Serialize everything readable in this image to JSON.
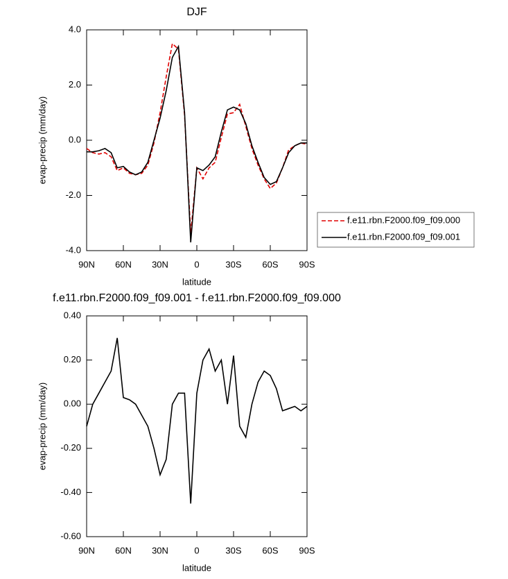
{
  "chart_data": [
    {
      "type": "line",
      "title": "DJF",
      "x_label": "latitude",
      "y_label": "evap-precip (mm/day)",
      "x": [
        90,
        85,
        80,
        75,
        70,
        65,
        60,
        55,
        50,
        45,
        40,
        35,
        30,
        25,
        20,
        15,
        10,
        5,
        0,
        -5,
        -10,
        -15,
        -20,
        -25,
        -30,
        -35,
        -40,
        -45,
        -50,
        -55,
        -60,
        -65,
        -70,
        -75,
        -80,
        -85,
        -90
      ],
      "series": [
        {
          "name": "f.e11.rbn.F2000.f09_f09.000",
          "color": "#e00000",
          "line_style": "dashed",
          "values": [
            -0.3,
            -0.45,
            -0.5,
            -0.45,
            -0.6,
            -1.1,
            -1.0,
            -1.2,
            -1.25,
            -1.2,
            -0.9,
            -0.1,
            1.0,
            2.3,
            3.5,
            3.3,
            0.9,
            -3.4,
            -1.0,
            -1.4,
            -1.0,
            -0.8,
            0.1,
            0.95,
            1.0,
            1.3,
            0.5,
            -0.3,
            -0.9,
            -1.4,
            -1.75,
            -1.55,
            -1.0,
            -0.35,
            -0.2,
            -0.1,
            -0.15
          ]
        },
        {
          "name": "f.e11.rbn.F2000.f09_f09.001",
          "color": "#000000",
          "line_style": "solid",
          "values": [
            -0.42,
            -0.42,
            -0.38,
            -0.3,
            -0.45,
            -1.0,
            -0.95,
            -1.15,
            -1.25,
            -1.15,
            -0.8,
            0.0,
            0.8,
            1.8,
            3.0,
            3.4,
            1.0,
            -3.7,
            -1.0,
            -1.1,
            -0.9,
            -0.6,
            0.3,
            1.1,
            1.2,
            1.1,
            0.6,
            -0.2,
            -0.8,
            -1.35,
            -1.6,
            -1.5,
            -1.0,
            -0.45,
            -0.2,
            -0.1,
            -0.1
          ]
        }
      ],
      "xlim": [
        90,
        -90
      ],
      "xticks": [
        {
          "value": 90,
          "label": "90N"
        },
        {
          "value": 60,
          "label": "60N"
        },
        {
          "value": 30,
          "label": "30N"
        },
        0,
        {
          "value": -30,
          "label": "30S"
        },
        {
          "value": -60,
          "label": "60S"
        },
        {
          "value": -90,
          "label": "90S"
        }
      ],
      "ylim": [
        -4,
        4
      ],
      "yticks": [
        {
          "value": -4,
          "label": "-4.0"
        },
        {
          "value": -2,
          "label": "-2.0"
        },
        {
          "value": 0,
          "label": "0.0"
        },
        {
          "value": 2,
          "label": "2.0"
        },
        {
          "value": 4,
          "label": "4.0"
        }
      ],
      "legend": "right"
    },
    {
      "type": "line",
      "title": "f.e11.rbn.F2000.f09_f09.001 - f.e11.rbn.F2000.f09_f09.000",
      "x_label": "latitude",
      "y_label": "evap-precip (mm/day)",
      "x": [
        90,
        85,
        80,
        75,
        70,
        65,
        60,
        55,
        50,
        45,
        40,
        35,
        30,
        25,
        20,
        15,
        10,
        5,
        0,
        -5,
        -10,
        -15,
        -20,
        -25,
        -30,
        -35,
        -40,
        -45,
        -50,
        -55,
        -60,
        -65,
        -70,
        -75,
        -80,
        -85,
        -90
      ],
      "series": [
        {
          "color": "#000000",
          "line_style": "solid",
          "values": [
            -0.1,
            0.0,
            0.05,
            0.1,
            0.15,
            0.3,
            0.03,
            0.02,
            0.0,
            -0.05,
            -0.1,
            -0.2,
            -0.32,
            -0.25,
            0.0,
            0.05,
            0.05,
            -0.45,
            0.05,
            0.2,
            0.25,
            0.15,
            0.2,
            0.0,
            0.22,
            -0.1,
            -0.15,
            0.0,
            0.1,
            0.15,
            0.13,
            0.07,
            -0.03,
            -0.02,
            -0.01,
            -0.03,
            -0.01
          ]
        }
      ],
      "xlim": [
        90,
        -90
      ],
      "xticks": [
        {
          "value": 90,
          "label": "90N"
        },
        {
          "value": 60,
          "label": "60N"
        },
        {
          "value": 30,
          "label": "30N"
        },
        0,
        {
          "value": -30,
          "label": "30S"
        },
        {
          "value": -60,
          "label": "60S"
        },
        {
          "value": -90,
          "label": "90S"
        }
      ],
      "ylim": [
        -0.6,
        0.4
      ],
      "yticks": [
        {
          "value": -0.6,
          "label": "-0.60"
        },
        {
          "value": -0.4,
          "label": "-0.40"
        },
        {
          "value": -0.2,
          "label": "-0.20"
        },
        {
          "value": 0,
          "label": "0.00"
        },
        {
          "value": 0.2,
          "label": "0.20"
        },
        {
          "value": 0.4,
          "label": "0.40"
        }
      ]
    }
  ]
}
